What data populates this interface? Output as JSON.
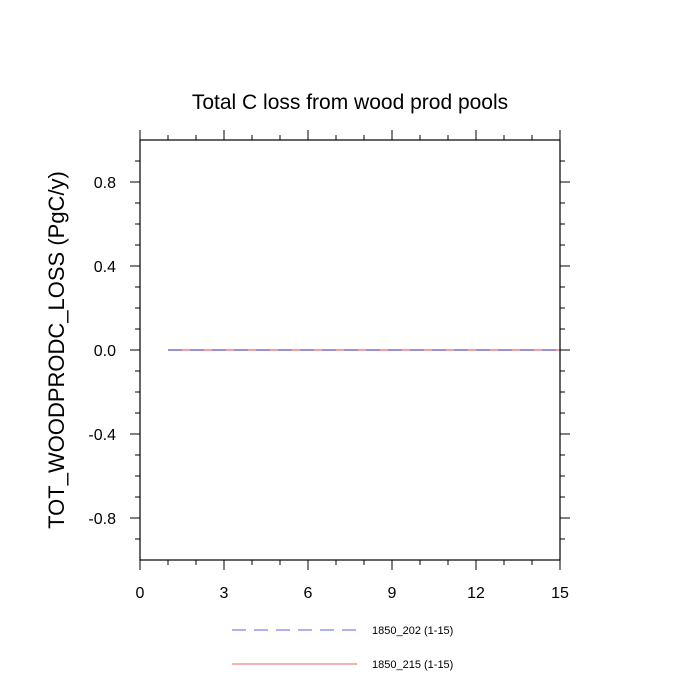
{
  "chart_data": {
    "type": "line",
    "title": "Total C loss from wood prod pools",
    "xlabel": "",
    "ylabel": "TOT_WOODPRODC_LOSS  (PgC/y)",
    "xlim": [
      0,
      15
    ],
    "ylim": [
      -1,
      1
    ],
    "x_ticks": [
      0,
      3,
      6,
      9,
      12,
      15
    ],
    "x_tick_labels": [
      "0",
      "3",
      "6",
      "9",
      "12",
      "15"
    ],
    "y_ticks": [
      -0.8,
      -0.4,
      0.0,
      0.4,
      0.8
    ],
    "y_tick_labels": [
      "-0.8",
      "-0.4",
      "0.0",
      "0.4",
      "0.8"
    ],
    "grid": false,
    "legend_position": "bottom",
    "series": [
      {
        "name": "1850_202 (1-15)",
        "color": "#8080e0",
        "style": "dashed",
        "x": [
          1,
          2,
          3,
          4,
          5,
          6,
          7,
          8,
          9,
          10,
          11,
          12,
          13,
          14,
          15
        ],
        "values": [
          0,
          0,
          0,
          0,
          0,
          0,
          0,
          0,
          0,
          0,
          0,
          0,
          0,
          0,
          0
        ]
      },
      {
        "name": "1850_215 (1-15)",
        "color": "#f08080",
        "style": "solid",
        "x": [
          1,
          2,
          3,
          4,
          5,
          6,
          7,
          8,
          9,
          10,
          11,
          12,
          13,
          14,
          15
        ],
        "values": [
          0,
          0,
          0,
          0,
          0,
          0,
          0,
          0,
          0,
          0,
          0,
          0,
          0,
          0,
          0
        ]
      }
    ]
  }
}
